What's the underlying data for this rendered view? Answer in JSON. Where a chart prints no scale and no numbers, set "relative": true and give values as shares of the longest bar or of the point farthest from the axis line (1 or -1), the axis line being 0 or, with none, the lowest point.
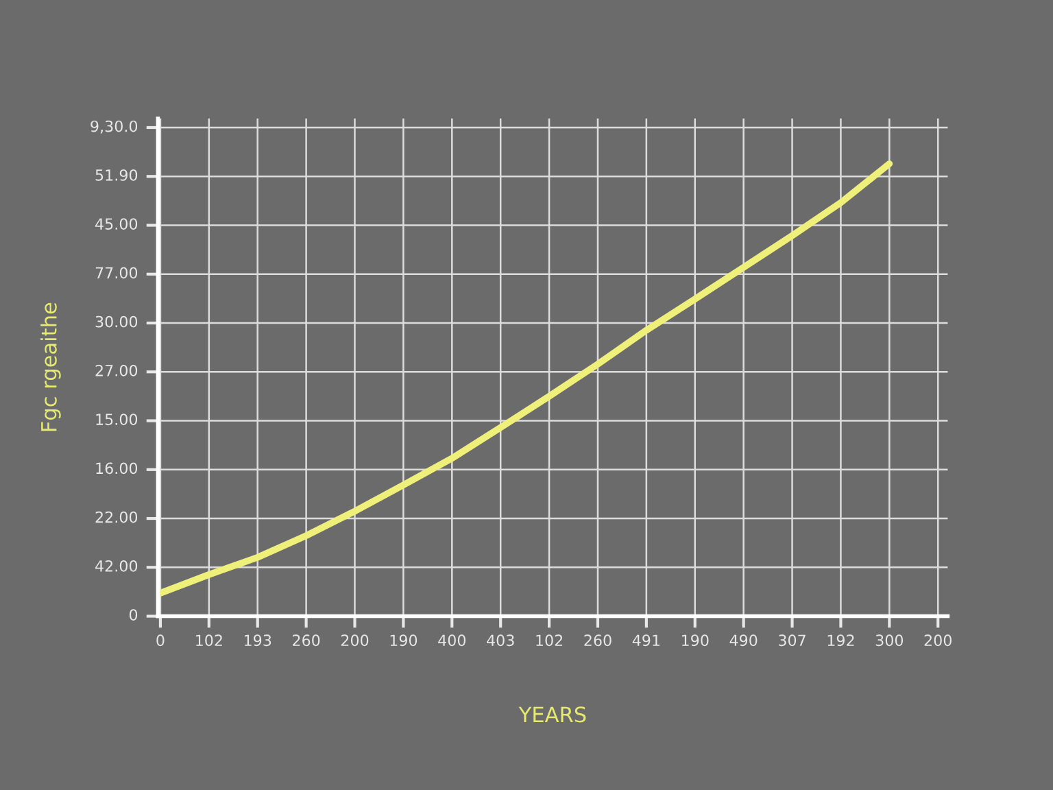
{
  "chart_data": {
    "type": "line",
    "xlabel": "YEARS",
    "ylabel": "Fgc rgeaithe",
    "relative": true,
    "categories": [
      "0",
      "102",
      "193",
      "260",
      "200",
      "190",
      "400",
      "403",
      "102",
      "260",
      "491",
      "190",
      "490",
      "307",
      "192",
      "300",
      "200"
    ],
    "series": [
      {
        "color": "#eef07a",
        "values": [
          0.051,
          0.092,
          0.13,
          0.178,
          0.232,
          0.29,
          0.349,
          0.417,
          0.486,
          0.557,
          0.632,
          0.701,
          0.771,
          0.841,
          0.914,
          1,
          null
        ]
      }
    ],
    "annotations": [
      "0",
      "42.00",
      "22.00",
      "16.00",
      "15.00",
      "27.00",
      "30.00",
      "77.00",
      "45.00",
      "51.90",
      "9,30.0"
    ],
    "grid": true,
    "marker": "none",
    "line_style": "solid"
  }
}
